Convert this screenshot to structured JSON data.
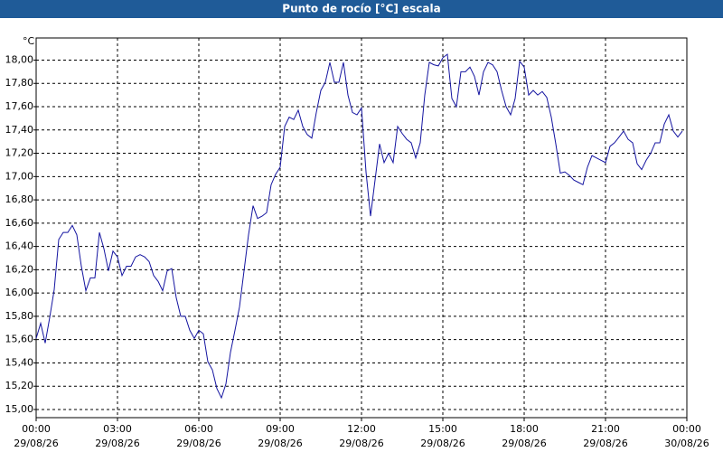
{
  "chart_data": {
    "type": "line",
    "title": "Punto de rocío [°C] escala",
    "y_unit": "°C",
    "color": "#1414a0",
    "grid": true,
    "x": [
      0,
      10,
      20,
      30,
      40,
      50,
      60,
      70,
      80,
      90,
      100,
      110,
      120,
      130,
      140,
      150,
      160,
      170,
      180,
      190,
      200,
      210,
      220,
      230,
      240,
      250,
      260,
      270,
      280,
      290,
      300,
      310,
      320,
      330,
      340,
      350,
      360,
      370,
      380,
      390,
      400,
      410,
      420,
      430,
      440,
      450,
      460,
      470,
      480,
      490,
      500,
      510,
      520,
      530,
      540,
      550,
      560,
      570,
      580,
      590,
      600,
      610,
      620,
      630,
      640,
      650,
      660,
      670,
      680,
      690,
      700,
      710,
      720,
      730,
      740,
      750,
      760,
      770,
      780,
      790,
      800,
      810,
      820,
      830,
      840,
      850,
      860,
      870,
      880,
      890,
      900,
      910,
      920,
      930,
      940,
      950,
      960,
      970,
      980,
      990,
      1000,
      1010,
      1020,
      1030,
      1040,
      1050,
      1060,
      1070,
      1080,
      1090,
      1100,
      1110,
      1120,
      1130,
      1140,
      1150,
      1160,
      1170,
      1180,
      1190,
      1200,
      1210,
      1220,
      1230,
      1240,
      1250,
      1260,
      1270,
      1280,
      1290,
      1300,
      1310,
      1320,
      1330,
      1340,
      1350,
      1360,
      1370,
      1380,
      1390,
      1400,
      1410,
      1420,
      1430
    ],
    "values": [
      15.61,
      15.74,
      15.57,
      15.79,
      16.03,
      16.46,
      16.52,
      16.52,
      16.58,
      16.5,
      16.23,
      16.02,
      16.13,
      16.13,
      16.52,
      16.38,
      16.19,
      16.36,
      16.31,
      16.15,
      16.23,
      16.23,
      16.31,
      16.33,
      16.31,
      16.27,
      16.15,
      16.1,
      16.02,
      16.19,
      16.21,
      15.96,
      15.8,
      15.8,
      15.68,
      15.61,
      15.68,
      15.65,
      15.41,
      15.34,
      15.18,
      15.1,
      15.22,
      15.49,
      15.68,
      15.88,
      16.19,
      16.5,
      16.75,
      16.64,
      16.66,
      16.69,
      16.93,
      17.02,
      17.08,
      17.43,
      17.51,
      17.49,
      17.57,
      17.43,
      17.36,
      17.33,
      17.55,
      17.74,
      17.81,
      17.98,
      17.81,
      17.81,
      17.98,
      17.7,
      17.55,
      17.53,
      17.59,
      17.04,
      16.66,
      16.97,
      17.28,
      17.12,
      17.2,
      17.12,
      17.43,
      17.37,
      17.32,
      17.29,
      17.16,
      17.29,
      17.7,
      17.98,
      17.96,
      17.95,
      18.02,
      18.05,
      17.67,
      17.6,
      17.9,
      17.9,
      17.94,
      17.86,
      17.7,
      17.9,
      17.98,
      17.96,
      17.9,
      17.74,
      17.6,
      17.53,
      17.67,
      17.99,
      17.94,
      17.7,
      17.74,
      17.7,
      17.73,
      17.68,
      17.51,
      17.28,
      17.03,
      17.04,
      17.01,
      16.97,
      16.95,
      16.93,
      17.08,
      17.18,
      17.16,
      17.14,
      17.12,
      17.26,
      17.29,
      17.34,
      17.39,
      17.32,
      17.29,
      17.11,
      17.06,
      17.14,
      17.2,
      17.29,
      17.29,
      17.45,
      17.53,
      17.39,
      17.34,
      17.39
    ],
    "xlim": [
      0,
      1440
    ],
    "xticks": [
      {
        "value": 0,
        "label": "00:00"
      },
      {
        "value": 180,
        "label": "03:00"
      },
      {
        "value": 360,
        "label": "06:00"
      },
      {
        "value": 540,
        "label": "09:00"
      },
      {
        "value": 720,
        "label": "12:00"
      },
      {
        "value": 900,
        "label": "15:00"
      },
      {
        "value": 1080,
        "label": "18:00"
      },
      {
        "value": 1260,
        "label": "21:00"
      },
      {
        "value": 1440,
        "label": "00:00"
      }
    ],
    "xtick_dates": [
      "29/08/26",
      "29/08/26",
      "29/08/26",
      "29/08/26",
      "29/08/26",
      "29/08/26",
      "29/08/26",
      "29/08/26",
      "30/08/26"
    ],
    "ylim": [
      14.93,
      18.19
    ],
    "yticks": [
      {
        "value": 15,
        "label": "15,00"
      },
      {
        "value": 15.2,
        "label": "15,20"
      },
      {
        "value": 15.4,
        "label": "15,40"
      },
      {
        "value": 15.6,
        "label": "15,60"
      },
      {
        "value": 15.8,
        "label": "15,80"
      },
      {
        "value": 16,
        "label": "16,00"
      },
      {
        "value": 16.2,
        "label": "16,20"
      },
      {
        "value": 16.4,
        "label": "16,40"
      },
      {
        "value": 16.6,
        "label": "16,60"
      },
      {
        "value": 16.8,
        "label": "16,80"
      },
      {
        "value": 17,
        "label": "17,00"
      },
      {
        "value": 17.2,
        "label": "17,20"
      },
      {
        "value": 17.4,
        "label": "17,40"
      },
      {
        "value": 17.6,
        "label": "17,60"
      },
      {
        "value": 17.8,
        "label": "17,80"
      },
      {
        "value": 18,
        "label": "18,00"
      }
    ]
  }
}
